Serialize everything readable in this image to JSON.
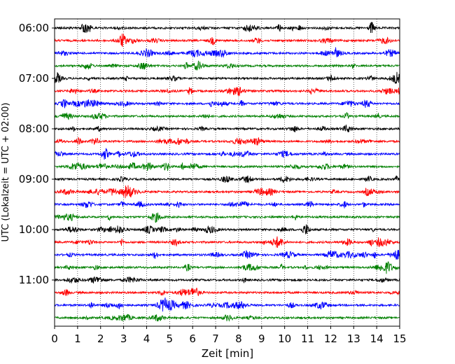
{
  "chart_data": {
    "type": "line",
    "title": "",
    "xlabel": "Zeit  [min]",
    "ylabel": "UTC (Lokalzeit = UTC + 02:00)",
    "xlim": [
      0,
      15
    ],
    "x_ticks": [
      "0",
      "1",
      "2",
      "3",
      "4",
      "5",
      "6",
      "7",
      "8",
      "9",
      "10",
      "11",
      "12",
      "13",
      "14",
      "15"
    ],
    "y_ticks": [
      {
        "label": "06:00",
        "row": 0
      },
      {
        "label": "07:00",
        "row": 4
      },
      {
        "label": "08:00",
        "row": 8
      },
      {
        "label": "09:00",
        "row": 12
      },
      {
        "label": "10:00",
        "row": 16
      },
      {
        "label": "11:00",
        "row": 20
      }
    ],
    "grid": "vertical dotted lines at each minute",
    "trace_interval_min": 15,
    "trace_colors": [
      "#000000",
      "#ff0000",
      "#0000ff",
      "#008000"
    ],
    "series": [
      {
        "start": "06:00",
        "color": "#000000"
      },
      {
        "start": "06:15",
        "color": "#ff0000"
      },
      {
        "start": "06:30",
        "color": "#0000ff"
      },
      {
        "start": "06:45",
        "color": "#008000"
      },
      {
        "start": "07:00",
        "color": "#000000"
      },
      {
        "start": "07:15",
        "color": "#ff0000"
      },
      {
        "start": "07:30",
        "color": "#0000ff"
      },
      {
        "start": "07:45",
        "color": "#008000"
      },
      {
        "start": "08:00",
        "color": "#000000"
      },
      {
        "start": "08:15",
        "color": "#ff0000"
      },
      {
        "start": "08:30",
        "color": "#0000ff"
      },
      {
        "start": "08:45",
        "color": "#008000"
      },
      {
        "start": "09:00",
        "color": "#000000"
      },
      {
        "start": "09:15",
        "color": "#ff0000"
      },
      {
        "start": "09:30",
        "color": "#0000ff"
      },
      {
        "start": "09:45",
        "color": "#008000"
      },
      {
        "start": "10:00",
        "color": "#000000"
      },
      {
        "start": "10:15",
        "color": "#ff0000"
      },
      {
        "start": "10:30",
        "color": "#0000ff"
      },
      {
        "start": "10:45",
        "color": "#008000"
      },
      {
        "start": "11:00",
        "color": "#000000"
      },
      {
        "start": "11:15",
        "color": "#ff0000"
      },
      {
        "start": "11:30",
        "color": "#0000ff"
      },
      {
        "start": "11:45",
        "color": "#008000"
      }
    ]
  }
}
